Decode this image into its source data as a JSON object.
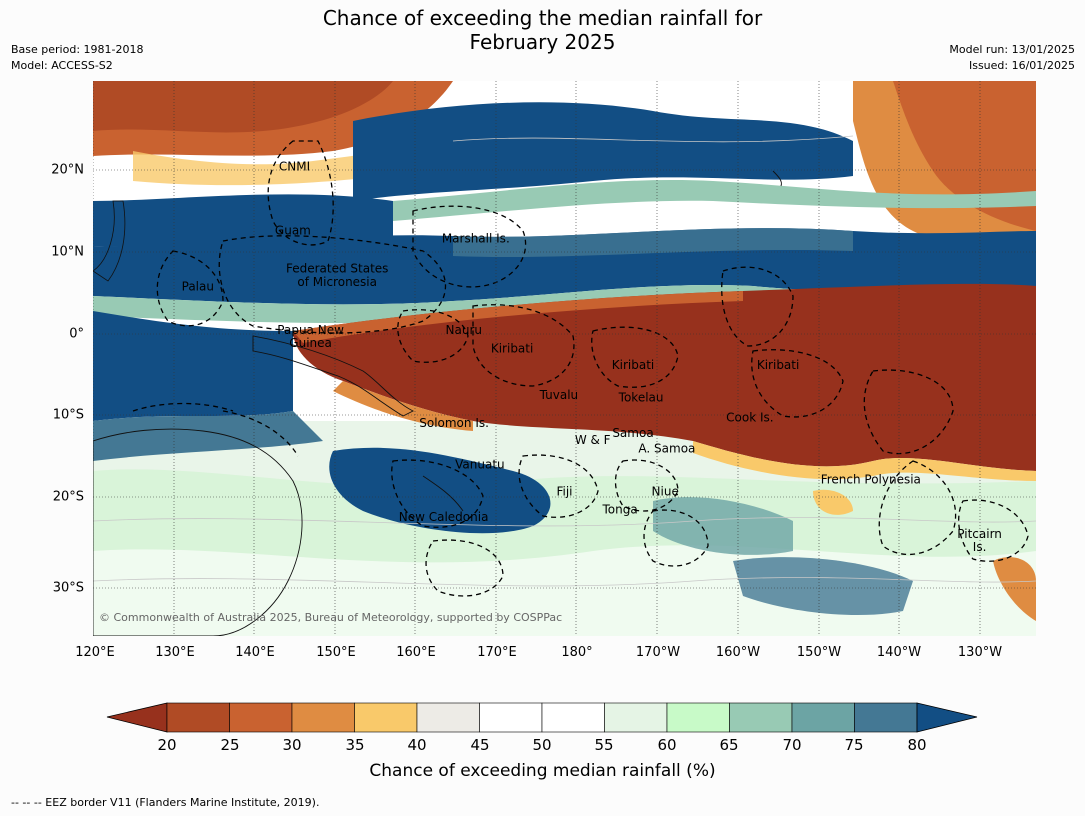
{
  "title": {
    "line1": "Chance of exceeding the median rainfall for",
    "line2": "February 2025"
  },
  "meta": {
    "base_period": "Base period: 1981-2018",
    "model": "Model: ACCESS-S2",
    "model_run": "Model run: 13/01/2025",
    "issued": "Issued: 16/01/2025"
  },
  "map": {
    "lon_labels": [
      "120°E",
      "130°E",
      "140°E",
      "150°E",
      "160°E",
      "170°E",
      "180°",
      "170°W",
      "160°W",
      "150°W",
      "140°W",
      "130°W"
    ],
    "lat_labels": [
      "20°N",
      "10°N",
      "0°",
      "10°S",
      "20°S",
      "30°S"
    ],
    "credit": "© Commonwealth of Australia 2025, Bureau of Meteorology, supported by COSPPac",
    "places": [
      {
        "name": "CNMI",
        "lon": 145.0,
        "lat": 20.0
      },
      {
        "name": "Guam",
        "lon": 144.8,
        "lat": 12.2
      },
      {
        "name": "Marshall Is.",
        "lon": 167.5,
        "lat": 11.2
      },
      {
        "name": "Federated States",
        "lon": 150.3,
        "lat": 7.5
      },
      {
        "name": "of Micronesia",
        "lon": 150.3,
        "lat": 5.9
      },
      {
        "name": "Palau",
        "lon": 133.0,
        "lat": 5.3
      },
      {
        "name": "Nauru",
        "lon": 166.0,
        "lat": 0.0
      },
      {
        "name": "Papua New",
        "lon": 147.0,
        "lat": 0.0
      },
      {
        "name": "Guinea",
        "lon": 147.0,
        "lat": -1.6
      },
      {
        "name": "Kiribati",
        "lon": 172.0,
        "lat": -2.3
      },
      {
        "name": "Kiribati",
        "lon": -173.0,
        "lat": -4.3
      },
      {
        "name": "Kiribati",
        "lon": -155.0,
        "lat": -4.3
      },
      {
        "name": "Tuvalu",
        "lon": 177.8,
        "lat": -8.0
      },
      {
        "name": "Tokelau",
        "lon": -172.0,
        "lat": -8.3
      },
      {
        "name": "Cook Is.",
        "lon": -158.5,
        "lat": -10.7
      },
      {
        "name": "Solomon Is.",
        "lon": 164.8,
        "lat": -11.4
      },
      {
        "name": "Samoa",
        "lon": -173.0,
        "lat": -12.6
      },
      {
        "name": "W & F",
        "lon": -178.0,
        "lat": -13.5
      },
      {
        "name": "A. Samoa",
        "lon": -168.8,
        "lat": -14.5
      },
      {
        "name": "Vanuatu",
        "lon": 168.0,
        "lat": -16.5
      },
      {
        "name": "French Polynesia",
        "lon": -143.5,
        "lat": -18.3
      },
      {
        "name": "Fiji",
        "lon": 178.5,
        "lat": -19.8
      },
      {
        "name": "Niue",
        "lon": -169.0,
        "lat": -19.8
      },
      {
        "name": "Tonga",
        "lon": -174.6,
        "lat": -22.0
      },
      {
        "name": "New Caledonia",
        "lon": 163.5,
        "lat": -22.9
      },
      {
        "name": "Pitcairn",
        "lon": -130.0,
        "lat": -25.0
      },
      {
        "name": "Is.",
        "lon": -130.0,
        "lat": -26.6
      }
    ]
  },
  "colorbar": {
    "ticks": [
      "20",
      "25",
      "30",
      "35",
      "40",
      "45",
      "50",
      "55",
      "60",
      "65",
      "70",
      "75",
      "80"
    ],
    "colors": [
      "#b04b25",
      "#c96230",
      "#df8c42",
      "#f9c96a",
      "#edebe6",
      "#ffffff",
      "#ffffff",
      "#e5f4e5",
      "#c8fac8",
      "#98cab4",
      "#6ca4a4",
      "#447894"
    ],
    "under_color": "#97311d",
    "over_color": "#124e84",
    "label": "Chance of exceeding median rainfall (%)"
  },
  "footnote": "--  --  -- EEZ border V11 (Flanders Marine Institute, 2019)."
}
